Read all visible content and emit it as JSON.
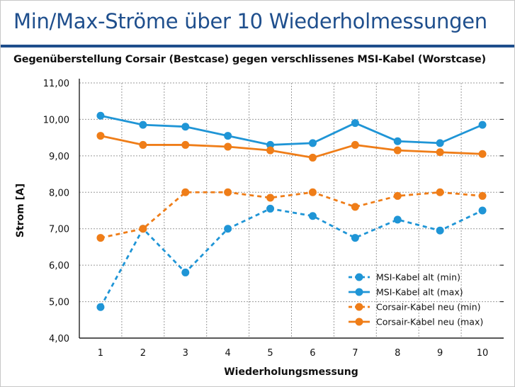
{
  "page": {
    "title": "Min/Max-Ströme über 10 Wiederholmessungen",
    "subtitle": "Gegenüberstellung Corsair (Bestcase) gegen verschlissenes MSI-Kabel (Worstcase)"
  },
  "chart_data": {
    "type": "line",
    "title": "Min/Max-Ströme über 10 Wiederholmessungen",
    "subtitle": "Gegenüberstellung Corsair (Bestcase) gegen verschlissenes MSI-Kabel (Worstcase)",
    "xlabel": "Wiederholungsmessung",
    "ylabel": "Strom [A]",
    "x": [
      1,
      2,
      3,
      4,
      5,
      6,
      7,
      8,
      9,
      10
    ],
    "x_tick_labels": [
      "1",
      "2",
      "3",
      "4",
      "5",
      "6",
      "7",
      "8",
      "9",
      "10"
    ],
    "ylim": [
      4,
      11
    ],
    "y_ticks": [
      4,
      5,
      6,
      7,
      8,
      9,
      10,
      11
    ],
    "y_tick_labels": [
      "4,00",
      "5,00",
      "6,00",
      "7,00",
      "8,00",
      "9,00",
      "10,00",
      "11,00"
    ],
    "grid": "dotted",
    "legend_position": "bottom-right",
    "series": [
      {
        "name": "MSI-Kabel alt (min)",
        "color": "#1f95d6",
        "dash": true,
        "values": [
          4.85,
          7.0,
          5.8,
          7.0,
          7.55,
          7.35,
          6.75,
          7.25,
          6.95,
          7.5
        ]
      },
      {
        "name": "MSI-Kabel alt (max)",
        "color": "#1f95d6",
        "dash": false,
        "values": [
          10.1,
          9.85,
          9.8,
          9.55,
          9.3,
          9.35,
          9.9,
          9.4,
          9.35,
          9.85
        ]
      },
      {
        "name": "Corsair-Kabel neu (min)",
        "color": "#ef7d18",
        "dash": true,
        "values": [
          6.75,
          7.0,
          8.0,
          8.0,
          7.85,
          8.0,
          7.6,
          7.9,
          8.0,
          7.9
        ]
      },
      {
        "name": "Corsair-Kabel  neu (max)",
        "color": "#ef7d18",
        "dash": false,
        "values": [
          9.55,
          9.3,
          9.3,
          9.25,
          9.15,
          8.95,
          9.3,
          9.15,
          9.1,
          9.05
        ]
      }
    ]
  }
}
